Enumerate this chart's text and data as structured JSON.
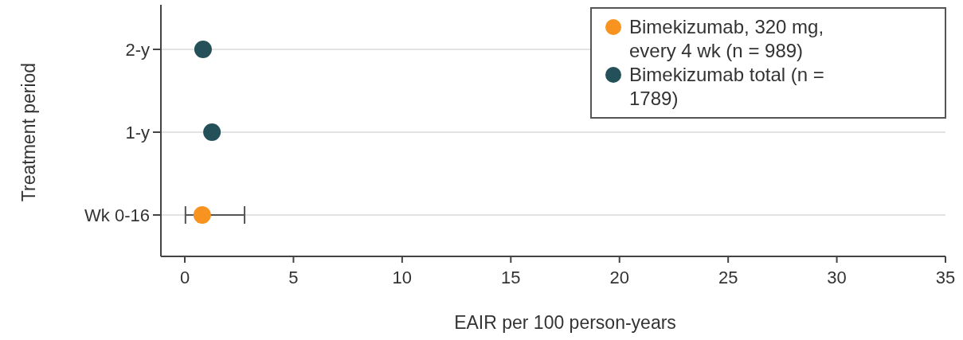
{
  "chart_data": {
    "type": "scatter",
    "orientation": "horizontal",
    "xlabel": "EAIR per 100 person-years",
    "ylabel": "Treatment period",
    "categories": [
      "2-y",
      "1-y",
      "Wk 0-16"
    ],
    "xlim": [
      -1.1,
      35
    ],
    "xticks": [
      0,
      5,
      10,
      15,
      20,
      25,
      30,
      35
    ],
    "grid": "y",
    "legend": "top right",
    "marker": "circle",
    "series": [
      {
        "name": "Bimekizumab, 320 mg, every 4 wk (n = 989)",
        "color": "#f7931e",
        "values": [
          null,
          null,
          0.8
        ],
        "errors": [
          null,
          null,
          [
            0.03,
            2.75
          ]
        ]
      },
      {
        "name": "Bimekizumab total (n = 1789)",
        "color": "#24505a",
        "values": [
          0.84,
          1.25,
          null
        ]
      }
    ]
  }
}
